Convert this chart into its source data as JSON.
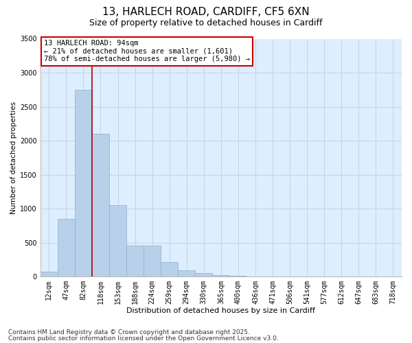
{
  "title_line1": "13, HARLECH ROAD, CARDIFF, CF5 6XN",
  "title_line2": "Size of property relative to detached houses in Cardiff",
  "xlabel": "Distribution of detached houses by size in Cardiff",
  "ylabel": "Number of detached properties",
  "categories": [
    "12sqm",
    "47sqm",
    "82sqm",
    "118sqm",
    "153sqm",
    "188sqm",
    "224sqm",
    "259sqm",
    "294sqm",
    "330sqm",
    "365sqm",
    "400sqm",
    "436sqm",
    "471sqm",
    "506sqm",
    "541sqm",
    "577sqm",
    "612sqm",
    "647sqm",
    "683sqm",
    "718sqm"
  ],
  "values": [
    75,
    850,
    2750,
    2100,
    1050,
    460,
    460,
    210,
    90,
    50,
    25,
    10,
    5,
    5,
    3,
    2,
    1,
    1,
    0,
    0,
    0
  ],
  "bar_color": "#b8d0ea",
  "bar_edge_color": "#8ab0d0",
  "vline_color": "#aa0000",
  "vline_x_index": 2,
  "annotation_box_text": "13 HARLECH ROAD: 94sqm\n← 21% of detached houses are smaller (1,601)\n78% of semi-detached houses are larger (5,980) →",
  "annotation_box_edge_color": "#cc0000",
  "annotation_box_fill": "#ffffff",
  "ylim": [
    0,
    3500
  ],
  "yticks": [
    0,
    500,
    1000,
    1500,
    2000,
    2500,
    3000,
    3500
  ],
  "grid_color": "#c0d0e0",
  "background_color": "#ddeeff",
  "footer_line1": "Contains HM Land Registry data © Crown copyright and database right 2025.",
  "footer_line2": "Contains public sector information licensed under the Open Government Licence v3.0.",
  "title_fontsize": 11,
  "subtitle_fontsize": 9,
  "tick_fontsize": 7,
  "xlabel_fontsize": 8,
  "ylabel_fontsize": 7.5,
  "footer_fontsize": 6.5
}
